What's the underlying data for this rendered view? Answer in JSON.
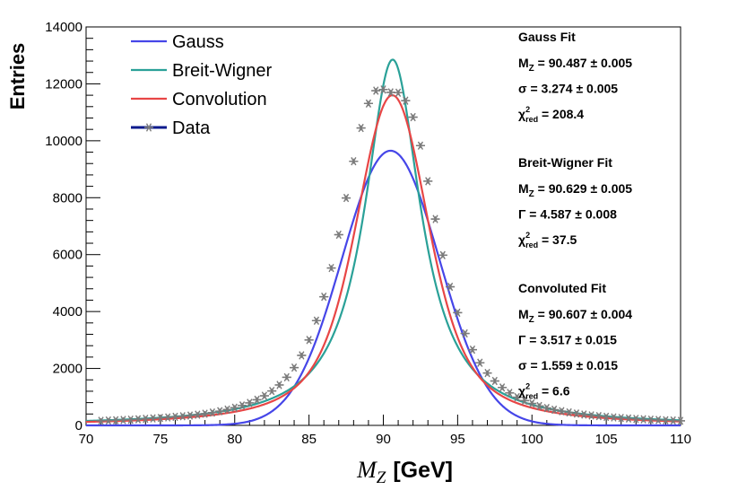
{
  "chart_data": {
    "type": "line",
    "xlabel_symbol": "M",
    "xlabel_subscript": "Z",
    "xlabel_unit": "[GeV]",
    "ylabel": "Entries",
    "xlim": [
      70,
      110
    ],
    "ylim": [
      0,
      14000
    ],
    "x_ticks": [
      70,
      75,
      80,
      85,
      90,
      95,
      100,
      105,
      110
    ],
    "y_ticks": [
      0,
      2000,
      4000,
      6000,
      8000,
      10000,
      12000,
      14000
    ],
    "grid": false,
    "legend_position": "top-left",
    "series": [
      {
        "name": "Gauss",
        "color": "#4646e8",
        "model": "gauss",
        "params": {
          "mean": 90.487,
          "sigma": 3.274,
          "amplitude": 9650,
          "baseline": 0
        }
      },
      {
        "name": "Breit-Wigner",
        "color": "#2aa198",
        "model": "breit-wigner",
        "params": {
          "mass": 90.629,
          "gamma": 4.587,
          "amplitude": 12850
        }
      },
      {
        "name": "Convolution",
        "color": "#e84646",
        "model": "voigt",
        "params": {
          "mass": 90.607,
          "gamma": 3.517,
          "sigma": 1.559,
          "amplitude": 11600
        }
      }
    ],
    "data_series": {
      "name": "Data",
      "color": "#7a7a7a",
      "legend_color": "#0a1a8c",
      "x": [
        71.0,
        71.5,
        72.0,
        72.5,
        73.0,
        73.5,
        74.0,
        74.5,
        75.0,
        75.5,
        76.0,
        76.5,
        77.0,
        77.5,
        78.0,
        78.5,
        79.0,
        79.5,
        80.0,
        80.5,
        81.0,
        81.5,
        82.0,
        82.5,
        83.0,
        83.5,
        84.0,
        84.5,
        85.0,
        85.5,
        86.0,
        86.5,
        87.0,
        87.5,
        88.0,
        88.5,
        89.0,
        89.5,
        90.0,
        90.5,
        91.0,
        91.5,
        92.0,
        92.5,
        93.0,
        93.5,
        94.0,
        94.5,
        95.0,
        95.5,
        96.0,
        96.5,
        97.0,
        97.5,
        98.0,
        98.5,
        99.0,
        99.5,
        100.0,
        100.5,
        101.0,
        101.5,
        102.0,
        102.5,
        103.0,
        103.5,
        104.0,
        104.5,
        105.0,
        105.5,
        106.0,
        106.5,
        107.0,
        107.5,
        108.0,
        108.5,
        109.0,
        109.5,
        110.0
      ],
      "y": [
        160,
        170,
        180,
        190,
        200,
        215,
        230,
        245,
        260,
        280,
        300,
        320,
        345,
        375,
        410,
        450,
        500,
        555,
        620,
        700,
        790,
        900,
        1040,
        1210,
        1420,
        1690,
        2030,
        2460,
        3000,
        3680,
        4520,
        5530,
        6700,
        7990,
        9280,
        10450,
        11310,
        11760,
        11800,
        11700,
        11690,
        11410,
        10830,
        9830,
        8580,
        7250,
        5980,
        4870,
        3960,
        3230,
        2660,
        2200,
        1840,
        1560,
        1330,
        1140,
        990,
        870,
        770,
        680,
        610,
        550,
        500,
        455,
        415,
        380,
        350,
        325,
        300,
        280,
        260,
        243,
        228,
        214,
        201,
        190,
        179,
        170,
        160
      ]
    },
    "annotations": [
      {
        "title": "Gauss Fit",
        "lines": [
          {
            "sym": "M",
            "sub": "Z",
            "sup": "",
            "rest": " = 90.487  ± 0.005"
          },
          {
            "sym": "σ",
            "sub": "",
            "sup": "",
            "rest": " = 3.274  ± 0.005"
          },
          {
            "sym": "χ",
            "sub": "red",
            "sup": "2",
            "rest": " = 208.4"
          }
        ]
      },
      {
        "title": "Breit-Wigner Fit",
        "lines": [
          {
            "sym": "M",
            "sub": "Z",
            "sup": "",
            "rest": " = 90.629  ± 0.005"
          },
          {
            "sym": "Γ",
            "sub": "",
            "sup": "",
            "rest": " = 4.587  ± 0.008"
          },
          {
            "sym": "χ",
            "sub": "red",
            "sup": "2",
            "rest": " = 37.5"
          }
        ]
      },
      {
        "title": "Convoluted Fit",
        "lines": [
          {
            "sym": "M",
            "sub": "Z",
            "sup": "",
            "rest": " = 90.607  ± 0.004"
          },
          {
            "sym": "Γ",
            "sub": "",
            "sup": "",
            "rest": " = 3.517  ± 0.015"
          },
          {
            "sym": "σ",
            "sub": "",
            "sup": "",
            "rest": " = 1.559  ± 0.015"
          },
          {
            "sym": "χ",
            "sub": "red",
            "sup": "2",
            "rest": " = 6.6"
          }
        ]
      }
    ]
  }
}
